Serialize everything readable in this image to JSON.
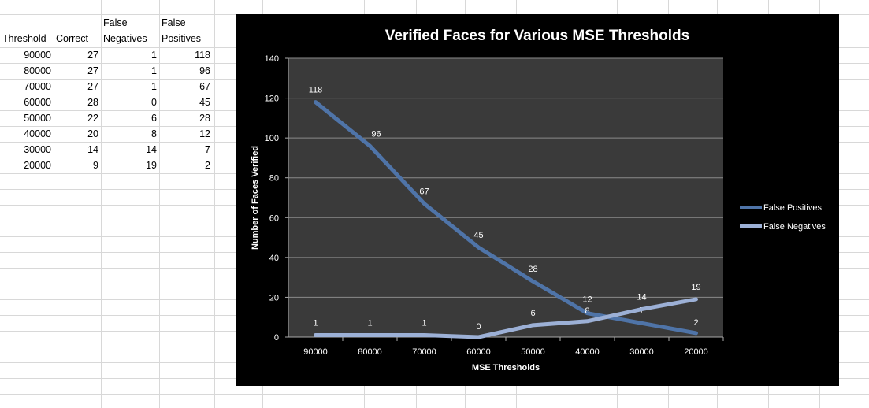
{
  "table": {
    "headers": [
      [
        "",
        "Threshold"
      ],
      [
        "",
        "Correct"
      ],
      [
        "False",
        "Negatives"
      ],
      [
        "False",
        "Positives"
      ]
    ],
    "rows": [
      [
        "90000",
        "27",
        "1",
        "118"
      ],
      [
        "80000",
        "27",
        "1",
        "96"
      ],
      [
        "70000",
        "27",
        "1",
        "67"
      ],
      [
        "60000",
        "28",
        "0",
        "45"
      ],
      [
        "50000",
        "22",
        "6",
        "28"
      ],
      [
        "40000",
        "20",
        "8",
        "12"
      ],
      [
        "30000",
        "14",
        "14",
        "7"
      ],
      [
        "20000",
        "9",
        "19",
        "2"
      ]
    ]
  },
  "chart_data": {
    "type": "line",
    "title": "Verified Faces for Various MSE Thresholds",
    "xlabel": "MSE Thresholds",
    "ylabel": "Number of Faces Verified",
    "categories": [
      "90000",
      "80000",
      "70000",
      "60000",
      "50000",
      "40000",
      "30000",
      "20000"
    ],
    "ylim": [
      0,
      140
    ],
    "yticks": [
      "0",
      "20",
      "40",
      "60",
      "80",
      "100",
      "120",
      "140"
    ],
    "grid": true,
    "legend": "right",
    "background": "#000000",
    "plot_background": "#3a3a3a",
    "series": [
      {
        "name": "False Positives",
        "color": "#4f74a8",
        "values": [
          118,
          96,
          67,
          45,
          28,
          12,
          7,
          2
        ]
      },
      {
        "name": "False Negatives",
        "color": "#9cb0d6",
        "values": [
          1,
          1,
          1,
          0,
          6,
          8,
          14,
          19
        ]
      }
    ]
  }
}
